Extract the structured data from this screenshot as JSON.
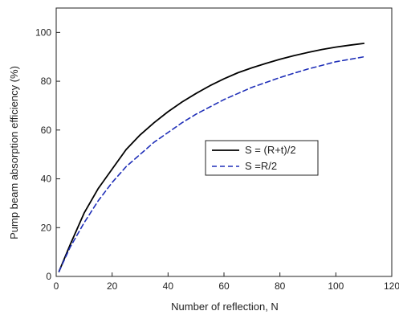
{
  "chart_data": {
    "type": "line",
    "xlabel": "Number of reflection, N",
    "ylabel": "Pump beam absorption efficiency (%)",
    "xlim": [
      0,
      120
    ],
    "ylim": [
      0,
      110
    ],
    "xticks": [
      0,
      20,
      40,
      60,
      80,
      100,
      120
    ],
    "yticks": [
      0,
      20,
      40,
      60,
      80,
      100
    ],
    "grid": false,
    "legend_position": "center-right",
    "series": [
      {
        "name": "S = (R+t)/2",
        "style": "solid",
        "color": "#000000",
        "x": [
          1,
          5,
          10,
          15,
          20,
          25,
          30,
          35,
          40,
          45,
          50,
          55,
          60,
          65,
          70,
          75,
          80,
          85,
          90,
          95,
          100,
          105,
          110
        ],
        "y": [
          2,
          13,
          26,
          36,
          44,
          52,
          58,
          63,
          67.5,
          71.5,
          75,
          78.2,
          81,
          83.5,
          85.5,
          87.3,
          89,
          90.5,
          91.8,
          93,
          94,
          94.8,
          95.5
        ]
      },
      {
        "name": "S =R/2",
        "style": "dashed",
        "color": "#1f2fb8",
        "x": [
          1,
          5,
          10,
          15,
          20,
          25,
          30,
          35,
          40,
          45,
          50,
          55,
          60,
          65,
          70,
          75,
          80,
          85,
          90,
          95,
          100,
          105,
          110
        ],
        "y": [
          2,
          12,
          22,
          31,
          38.5,
          45,
          50,
          55,
          59,
          63,
          66.5,
          69.5,
          72.5,
          75,
          77.5,
          79.5,
          81.5,
          83.3,
          85,
          86.5,
          88,
          89,
          90
        ]
      }
    ]
  }
}
